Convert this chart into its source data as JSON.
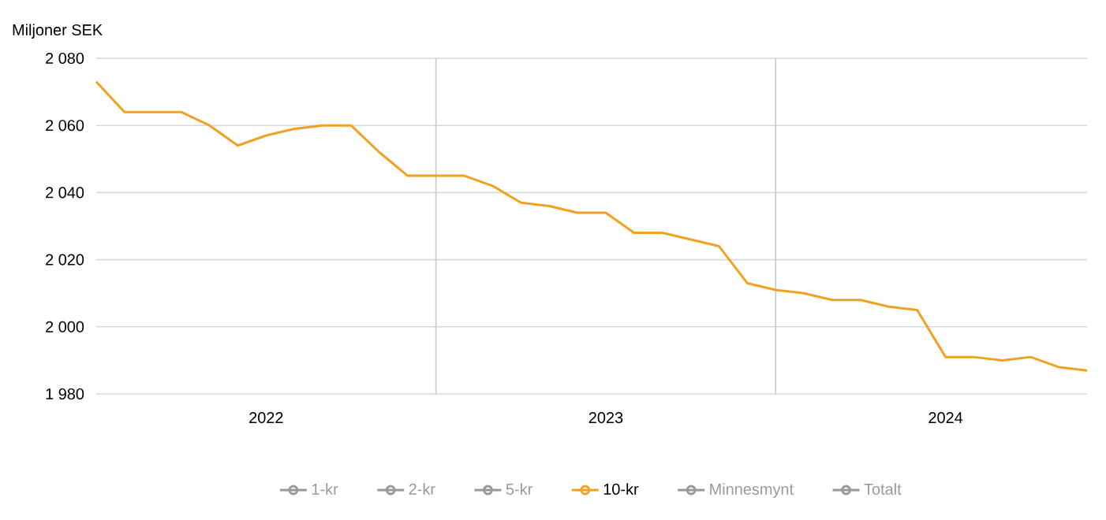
{
  "chart_data": {
    "type": "line",
    "ylabel": "Miljoner SEK",
    "x": [
      "2022-01",
      "2022-02",
      "2022-03",
      "2022-04",
      "2022-05",
      "2022-06",
      "2022-07",
      "2022-08",
      "2022-09",
      "2022-10",
      "2022-11",
      "2022-12",
      "2023-01",
      "2023-02",
      "2023-03",
      "2023-04",
      "2023-05",
      "2023-06",
      "2023-07",
      "2023-08",
      "2023-09",
      "2023-10",
      "2023-11",
      "2023-12",
      "2024-01",
      "2024-02",
      "2024-03",
      "2024-04",
      "2024-05",
      "2024-06",
      "2024-07",
      "2024-08",
      "2024-09",
      "2024-10",
      "2024-11",
      "2024-12"
    ],
    "series": [
      {
        "name": "1-kr",
        "color": "#999999",
        "values": [
          null,
          null,
          null,
          null,
          null,
          null,
          null,
          null,
          null,
          null,
          null,
          null,
          null,
          null,
          null,
          null,
          null,
          null,
          null,
          null,
          null,
          null,
          null,
          null,
          null,
          null,
          null,
          null,
          null,
          null,
          null,
          null,
          null,
          null,
          null,
          null
        ]
      },
      {
        "name": "2-kr",
        "color": "#999999",
        "values": [
          null,
          null,
          null,
          null,
          null,
          null,
          null,
          null,
          null,
          null,
          null,
          null,
          null,
          null,
          null,
          null,
          null,
          null,
          null,
          null,
          null,
          null,
          null,
          null,
          null,
          null,
          null,
          null,
          null,
          null,
          null,
          null,
          null,
          null,
          null,
          null
        ]
      },
      {
        "name": "5-kr",
        "color": "#999999",
        "values": [
          null,
          null,
          null,
          null,
          null,
          null,
          null,
          null,
          null,
          null,
          null,
          null,
          null,
          null,
          null,
          null,
          null,
          null,
          null,
          null,
          null,
          null,
          null,
          null,
          null,
          null,
          null,
          null,
          null,
          null,
          null,
          null,
          null,
          null,
          null,
          null
        ]
      },
      {
        "name": "10-kr",
        "color": "#f0a122",
        "values": [
          2073,
          2064,
          2064,
          2064,
          2060,
          2054,
          2057,
          2059,
          2060,
          2060,
          2052,
          2045,
          2045,
          2045,
          2042,
          2037,
          2036,
          2034,
          2034,
          2028,
          2028,
          2026,
          2024,
          2013,
          2011,
          2010,
          2008,
          2008,
          2006,
          2005,
          1991,
          1991,
          1990,
          1991,
          1988,
          1987
        ]
      },
      {
        "name": "Minnesmynt",
        "color": "#999999",
        "values": [
          null,
          null,
          null,
          null,
          null,
          null,
          null,
          null,
          null,
          null,
          null,
          null,
          null,
          null,
          null,
          null,
          null,
          null,
          null,
          null,
          null,
          null,
          null,
          null,
          null,
          null,
          null,
          null,
          null,
          null,
          null,
          null,
          null,
          null,
          null,
          null
        ]
      },
      {
        "name": "Totalt",
        "color": "#999999",
        "values": [
          null,
          null,
          null,
          null,
          null,
          null,
          null,
          null,
          null,
          null,
          null,
          null,
          null,
          null,
          null,
          null,
          null,
          null,
          null,
          null,
          null,
          null,
          null,
          null,
          null,
          null,
          null,
          null,
          null,
          null,
          null,
          null,
          null,
          null,
          null,
          null
        ]
      }
    ],
    "xlim": [
      "2022-01",
      "2024-12"
    ],
    "xticks": [
      {
        "value": "2022-07",
        "label": "2022"
      },
      {
        "value": "2023-01",
        "label": null
      },
      {
        "value": "2023-07",
        "label": "2023"
      },
      {
        "value": "2024-01",
        "label": null
      },
      {
        "value": "2024-07",
        "label": "2024"
      }
    ],
    "ylim": [
      1980,
      2080
    ],
    "yticks": [
      {
        "value": 1980,
        "label": "1 980"
      },
      {
        "value": 2000,
        "label": "2 000"
      },
      {
        "value": 2020,
        "label": "2 020"
      },
      {
        "value": 2040,
        "label": "2 040"
      },
      {
        "value": 2060,
        "label": "2 060"
      },
      {
        "value": 2080,
        "label": "2 080"
      }
    ],
    "grid": true,
    "legend": "bottom",
    "line_style": "solid"
  }
}
